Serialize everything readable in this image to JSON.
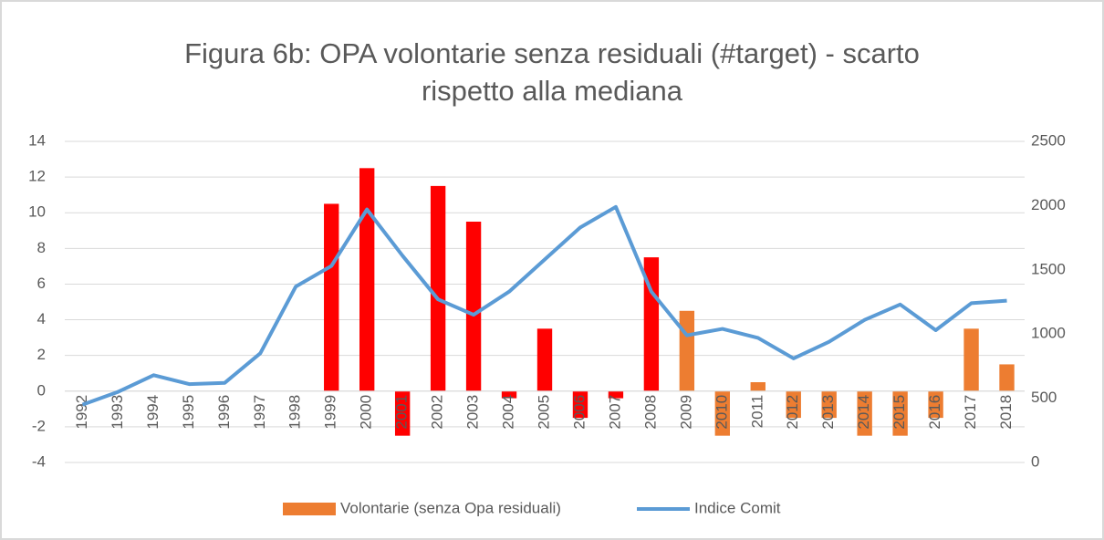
{
  "chart_data": {
    "type": "bar_line",
    "title": [
      "Figura 6b: OPA volontarie senza residuali (#target) - scarto",
      "rispetto alla mediana"
    ],
    "categories": [
      "1992",
      "1993",
      "1994",
      "1995",
      "1996",
      "1997",
      "1998",
      "1999",
      "2000",
      "2001",
      "2002",
      "2003",
      "2004",
      "2005",
      "2006",
      "2007",
      "2008",
      "2009",
      "2010",
      "2011",
      "2012",
      "2013",
      "2014",
      "2015",
      "2016",
      "2017",
      "2018"
    ],
    "series": [
      {
        "name": "Volontarie (senza Opa residuali)",
        "color": "#ed7d31",
        "type": "bar",
        "colors": [
          "#ff0000",
          "#ff0000",
          "#ff0000",
          "#ff0000",
          "#ff0000",
          "#ff0000",
          "#ff0000",
          "#ff0000",
          "#ff0000",
          "#ff0000",
          "#ff0000",
          "#ff0000",
          "#ff0000",
          "#ff0000",
          "#ff0000",
          "#ff0000",
          "#ff0000",
          "#ed7d31",
          "#ed7d31",
          "#ed7d31",
          "#ed7d31",
          "#ed7d31",
          "#ed7d31",
          "#ed7d31",
          "#ed7d31",
          "#ed7d31",
          "#ed7d31"
        ],
        "values": [
          null,
          null,
          null,
          null,
          null,
          null,
          null,
          10.5,
          12.5,
          -2.5,
          11.5,
          9.5,
          -0.4,
          3.5,
          -1.5,
          -0.4,
          7.5,
          4.5,
          -2.5,
          0.5,
          -1.5,
          -1.5,
          -2.5,
          -2.5,
          -1.5,
          3.5,
          1.5
        ]
      },
      {
        "name": "Indice Comit",
        "color": "#5b9bd5",
        "type": "line",
        "axis": "y2",
        "values": [
          450,
          550,
          680,
          610,
          620,
          850,
          1370,
          1530,
          1970,
          1610,
          1270,
          1150,
          1330,
          1580,
          1830,
          1990,
          1330,
          990,
          1040,
          970,
          810,
          940,
          1110,
          1230,
          1030,
          1240,
          1260
        ]
      }
    ],
    "ylim": [
      -4,
      14
    ],
    "yticks": [
      -4,
      -2,
      0,
      2,
      4,
      6,
      8,
      10,
      12,
      14
    ],
    "y2lim": [
      0,
      2500
    ],
    "y2ticks": [
      0,
      500,
      1000,
      1500,
      2000,
      2500
    ],
    "grid": true,
    "legend": "bottom"
  }
}
